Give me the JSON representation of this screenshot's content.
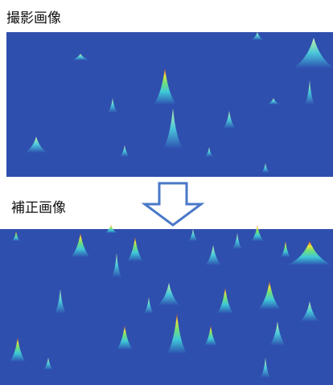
{
  "captured_label": "撮影画像",
  "corrected_label": "補正画像"
}
